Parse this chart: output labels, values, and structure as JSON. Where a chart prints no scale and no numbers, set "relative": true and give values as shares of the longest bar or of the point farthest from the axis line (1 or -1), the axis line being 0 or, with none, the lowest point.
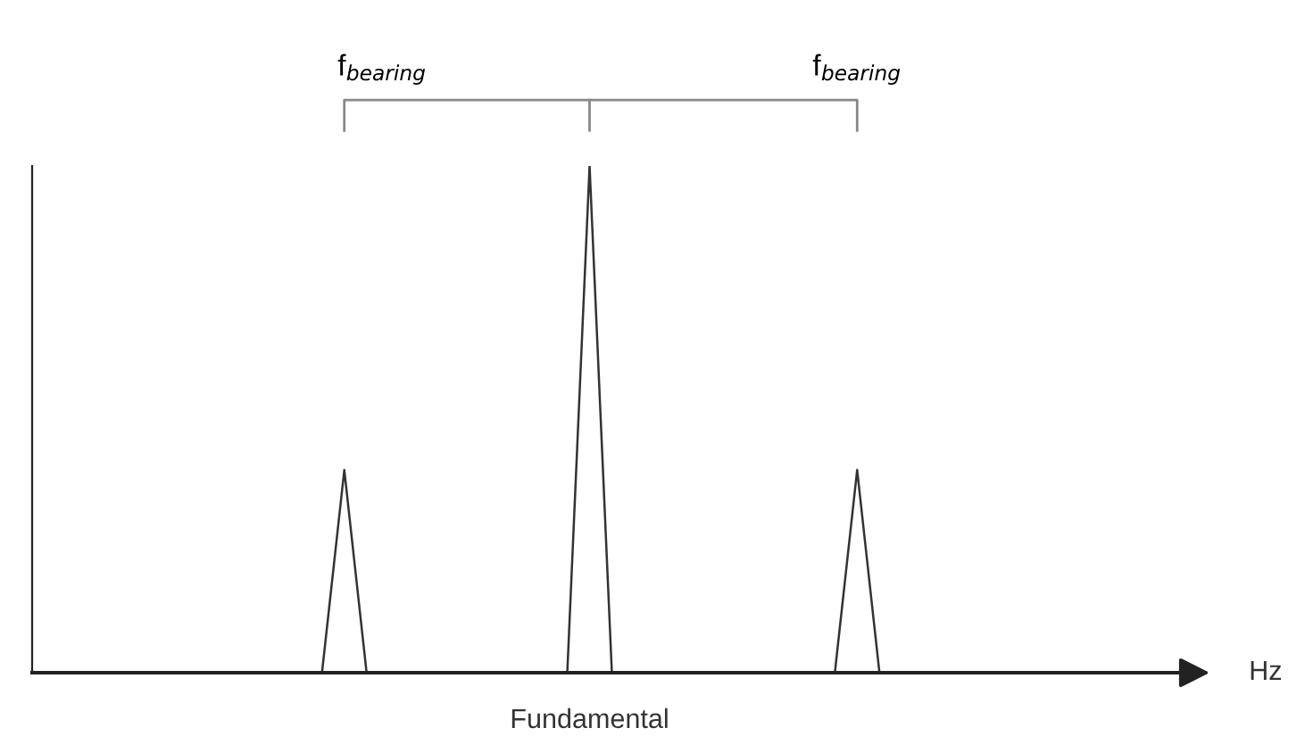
{
  "chart_data": {
    "type": "line",
    "relative": true,
    "xlabel": "Hz",
    "annotations": [
      "f$_{bearing}$",
      "f$_{bearing}$",
      "Fundamental"
    ],
    "categories": [
      null,
      null,
      null,
      null,
      null,
      null,
      null,
      null,
      null,
      null,
      null,
      null,
      null,
      null,
      null,
      null,
      null,
      null,
      null,
      null,
      null,
      null,
      null,
      null,
      null,
      null,
      null,
      null,
      null,
      null,
      null,
      null,
      null,
      null,
      null,
      null,
      null,
      null,
      null,
      null,
      null,
      null,
      null,
      null,
      null,
      null,
      null,
      null,
      null,
      null,
      null,
      null
    ],
    "series": [
      {
        "color": "#333333",
        "values": [
          0,
          0,
          0,
          0,
          0,
          0,
          0,
          0,
          0,
          0,
          0,
          0,
          0,
          0,
          0.4,
          0,
          0,
          0,
          0,
          0,
          0,
          0,
          0,
          0,
          0,
          1,
          0,
          0,
          0,
          0,
          0,
          0,
          0,
          0,
          0,
          0,
          0,
          0.4,
          0,
          0,
          0,
          0,
          0,
          0,
          0,
          0,
          0,
          0,
          0,
          0,
          0,
          0
        ]
      }
    ],
    "grid": false,
    "legend": false,
    "line_style": "solid",
    "marker": "none"
  }
}
